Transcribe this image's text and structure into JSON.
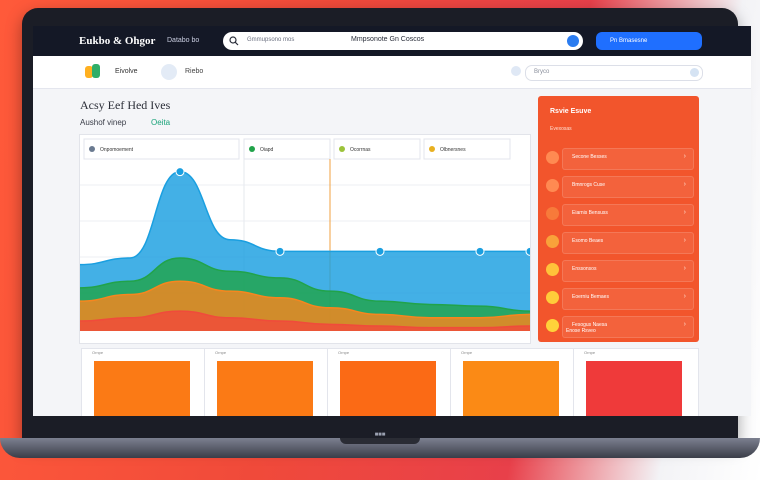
{
  "app": {
    "title": "Eukbo & Ohgor",
    "nav_link": "Databo bo"
  },
  "search": {
    "placeholder": "Gmmupsono mos",
    "value": "Mmpsonote Gn Coscos"
  },
  "cta": {
    "label": "Pn Bmasesne"
  },
  "subbar": {
    "logo_text": "Eivolve",
    "link": "Riebo",
    "filter_placeholder": "Bryco"
  },
  "section": {
    "title": "Acsy Eef Hed Ives",
    "subtitle": "Aushof vinep",
    "subtitle_accent": "Oeita"
  },
  "chart_headers": [
    "Onpomoement",
    "Oiapd",
    "Ocorrnas",
    "Olbnersnes"
  ],
  "right_panel": {
    "title": "Rsvie Esuve",
    "subtitle": "Evexosas",
    "items": [
      {
        "label": "Secone  Besses",
        "color": "#ff8a52"
      },
      {
        "label": "Bmnrogs  Cuse",
        "color": "#ff8a52"
      },
      {
        "label": "Eiarnis Bensuss",
        "color": "#f77a3a"
      },
      {
        "label": "Esomo Beaes",
        "color": "#f9a23a"
      },
      {
        "label": "Enssonsos",
        "color": "#ffc23a"
      },
      {
        "label": "Eoerniu Bemaes",
        "color": "#ffcc3a"
      },
      {
        "label": "Fesogus Naesa",
        "color": "#ffd23a"
      }
    ],
    "footer": "Enose Rsveo"
  },
  "chart_data": {
    "type": "area",
    "title": "",
    "series": [
      {
        "values": [
          40,
          44,
          96,
          55,
          48,
          48,
          48,
          48,
          48,
          48
        ]
      },
      {
        "values": [
          26,
          30,
          44,
          36,
          32,
          24,
          18,
          16,
          15,
          12
        ]
      },
      {
        "values": [
          18,
          22,
          30,
          24,
          20,
          14,
          10,
          8,
          8,
          10
        ]
      },
      {
        "values": [
          6,
          8,
          12,
          8,
          6,
          4,
          3,
          2,
          2,
          3
        ]
      }
    ],
    "colors": [
      "#1a9fe0",
      "#21a34a",
      "#f7861e",
      "#f04b3b"
    ],
    "grid": true
  },
  "tiles": [
    {
      "label": "Ornpe",
      "color": "#fb7a15"
    },
    {
      "label": "Ornpe",
      "color": "#fb7a15"
    },
    {
      "label": "Ornpe",
      "color": "#fb6a15"
    },
    {
      "label": "Ornpe",
      "color": "#fb8a15"
    },
    {
      "label": "Ornpe",
      "color": "#ef3a3a"
    }
  ]
}
